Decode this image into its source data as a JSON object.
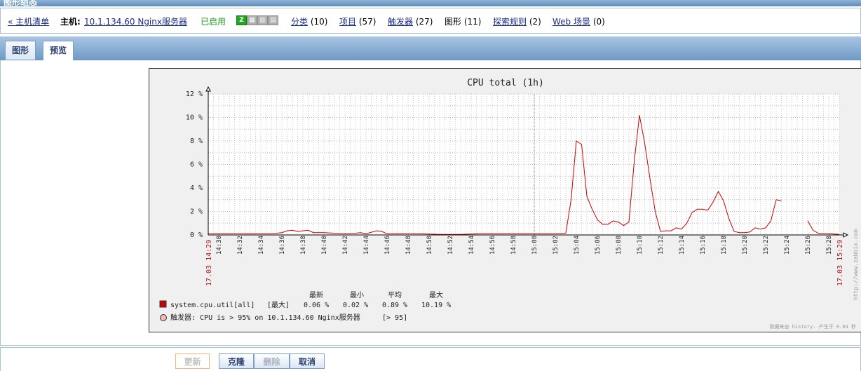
{
  "header": {
    "title": "图形组态"
  },
  "hostnav": {
    "host_list": "« 主机清单",
    "host_label": "主机:",
    "host_name": "10.1.134.60 Nginx服务器",
    "status": "已启用",
    "avail": [
      "Z",
      "SNMP",
      "JMX",
      "IPMI"
    ],
    "links": [
      {
        "label": "分类",
        "count": "(10)"
      },
      {
        "label": "项目",
        "count": "(57)"
      },
      {
        "label": "触发器",
        "count": "(27)"
      },
      {
        "label": "图形",
        "count": "(11)"
      },
      {
        "label": "探索规则",
        "count": "(2)"
      },
      {
        "label": "Web 场景",
        "count": "(0)"
      }
    ]
  },
  "tabs": [
    {
      "label": "图形"
    },
    {
      "label": "预览"
    }
  ],
  "chart_data": {
    "type": "line",
    "title": "CPU total (1h)",
    "y_unit": "%",
    "ylim": [
      0,
      12
    ],
    "y_ticks": [
      "12 %",
      "10 %",
      "8 %",
      "6 %",
      "4 %",
      "2 %",
      "0 %"
    ],
    "x_ticks": [
      "14:30",
      "14:32",
      "14:34",
      "14:36",
      "14:38",
      "14:40",
      "14:42",
      "14:44",
      "14:46",
      "14:48",
      "14:50",
      "14:52",
      "14:54",
      "14:56",
      "14:58",
      "15:00",
      "15:02",
      "15:04",
      "15:06",
      "15:08",
      "15:10",
      "15:12",
      "15:14",
      "15:16",
      "15:18",
      "15:20",
      "15:22",
      "15:24",
      "15:26",
      "15:28"
    ],
    "x_edge_labels": [
      "17.03 14:29",
      "17.03 15:29"
    ],
    "x_range_min": [
      0,
      60
    ],
    "series": [
      {
        "name": "system.cpu.util[all]",
        "color": "#cc0000",
        "points": [
          [
            0,
            0.1
          ],
          [
            6,
            0.1
          ],
          [
            7,
            0.2
          ],
          [
            7.5,
            0.35
          ],
          [
            8,
            0.4
          ],
          [
            8.5,
            0.3
          ],
          [
            9,
            0.35
          ],
          [
            9.5,
            0.4
          ],
          [
            10,
            0.2
          ],
          [
            11,
            0.2
          ],
          [
            12,
            0.15
          ],
          [
            13,
            0.1
          ],
          [
            14,
            0.15
          ],
          [
            14.5,
            0.2
          ],
          [
            15,
            0.1
          ],
          [
            16,
            0.35
          ],
          [
            16.5,
            0.3
          ],
          [
            17,
            0.1
          ],
          [
            20,
            0.1
          ],
          [
            22,
            0.05
          ],
          [
            24,
            0.05
          ],
          [
            26,
            0.1
          ],
          [
            28,
            0.1
          ],
          [
            31,
            0.1
          ],
          [
            33,
            0.1
          ],
          [
            34,
            0.15
          ],
          [
            34.5,
            3.0
          ],
          [
            35,
            8.0
          ],
          [
            35.5,
            7.7
          ],
          [
            36,
            3.3
          ],
          [
            36.5,
            2.2
          ],
          [
            37,
            1.3
          ],
          [
            37.5,
            0.9
          ],
          [
            38,
            0.9
          ],
          [
            38.5,
            1.2
          ],
          [
            39,
            1.1
          ],
          [
            39.5,
            0.8
          ],
          [
            40,
            1.1
          ],
          [
            40.5,
            6.2
          ],
          [
            41,
            10.2
          ],
          [
            41.5,
            7.8
          ],
          [
            42,
            4.8
          ],
          [
            42.5,
            2.0
          ],
          [
            43,
            0.3
          ],
          [
            43.5,
            0.35
          ],
          [
            44,
            0.35
          ],
          [
            44.5,
            0.6
          ],
          [
            45,
            0.5
          ],
          [
            45.5,
            1.0
          ],
          [
            46,
            1.9
          ],
          [
            46.5,
            2.2
          ],
          [
            47,
            2.2
          ],
          [
            47.5,
            2.1
          ],
          [
            48,
            2.8
          ],
          [
            48.5,
            3.7
          ],
          [
            49,
            2.9
          ],
          [
            49.5,
            1.4
          ],
          [
            50,
            0.3
          ],
          [
            50.5,
            0.2
          ],
          [
            51,
            0.2
          ],
          [
            51.5,
            0.25
          ],
          [
            52,
            0.6
          ],
          [
            52.5,
            0.5
          ],
          [
            53,
            0.6
          ],
          [
            53.5,
            1.2
          ],
          [
            54,
            3.0
          ],
          [
            54.5,
            2.9
          ]
        ],
        "points_after_gap": [
          [
            57,
            1.2
          ],
          [
            57.5,
            0.4
          ],
          [
            58,
            0.15
          ],
          [
            59,
            0.1
          ],
          [
            60,
            0.05
          ]
        ]
      }
    ],
    "legend": {
      "headers": [
        "最新",
        "最小",
        "平均",
        "最大"
      ],
      "items": [
        {
          "name": "system.cpu.util[all]",
          "func": "[最大]",
          "last": "0.06 %",
          "min": "0.02 %",
          "avg": "0.89 %",
          "max": "10.19 %"
        }
      ],
      "trigger": {
        "label": "触发器: CPU is > 95% on 10.1.134.60 Nginx服务器",
        "value": "[> 95]"
      }
    },
    "watermark": "http://www.zabbix.com",
    "footer_note": "数据来自 history. 产生于 0.04 秒"
  },
  "buttons": {
    "update": "更新",
    "clone": "克隆",
    "delete": "删除",
    "cancel": "取消"
  }
}
